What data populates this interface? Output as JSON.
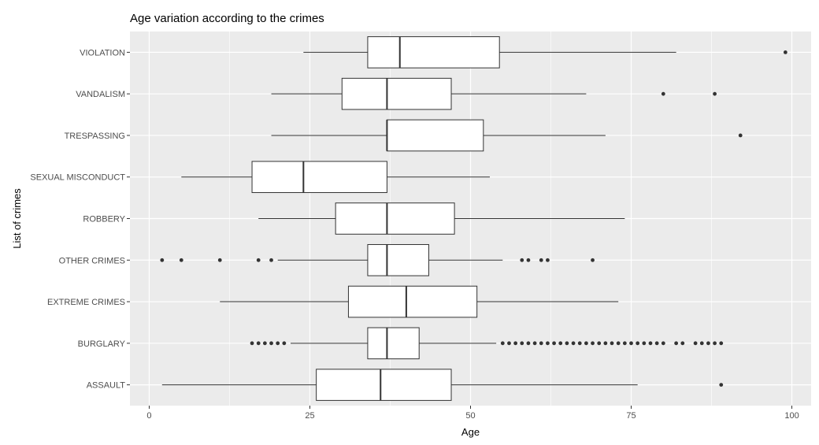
{
  "colors": {
    "panel_bg": "#ebebeb",
    "grid_major": "#ffffff",
    "box_fill": "#ffffff",
    "stroke": "#333333",
    "outlier": "#333333",
    "tick_text": "#4d4d4d"
  },
  "chart_data": {
    "type": "boxplot",
    "orientation": "horizontal",
    "title": "Age variation according to the  crimes",
    "xlabel": "Age",
    "ylabel": "List of crimes",
    "xlim": [
      -3,
      103
    ],
    "xticks": [
      0,
      25,
      50,
      75,
      100
    ],
    "grid": true,
    "categories": [
      "ASSAULT",
      "BURGLARY",
      "EXTREME CRIMES",
      "OTHER CRIMES",
      "ROBBERY",
      "SEXUAL MISCONDUCT",
      "TRESPASSING",
      "VANDALISM",
      "VIOLATION"
    ],
    "boxes": [
      {
        "category": "ASSAULT",
        "whisker_low": 2,
        "q1": 26,
        "median": 36,
        "q3": 47,
        "whisker_high": 76,
        "outliers": [
          89
        ]
      },
      {
        "category": "BURGLARY",
        "whisker_low": 22,
        "q1": 34,
        "median": 37,
        "q3": 42,
        "whisker_high": 54,
        "outliers": [
          16,
          17,
          18,
          19,
          20,
          21,
          55,
          56,
          57,
          58,
          59,
          60,
          61,
          62,
          63,
          64,
          65,
          66,
          67,
          68,
          69,
          70,
          71,
          72,
          73,
          74,
          75,
          76,
          77,
          78,
          79,
          80,
          82,
          83,
          85,
          86,
          87,
          88,
          89
        ]
      },
      {
        "category": "EXTREME CRIMES",
        "whisker_low": 11,
        "q1": 31,
        "median": 40,
        "q3": 51,
        "whisker_high": 73,
        "outliers": []
      },
      {
        "category": "OTHER CRIMES",
        "whisker_low": 20,
        "q1": 34,
        "median": 37,
        "q3": 43.5,
        "whisker_high": 55,
        "outliers": [
          2,
          5,
          11,
          17,
          19,
          58,
          59,
          61,
          62,
          69
        ]
      },
      {
        "category": "ROBBERY",
        "whisker_low": 17,
        "q1": 29,
        "median": 37,
        "q3": 47.5,
        "whisker_high": 74,
        "outliers": []
      },
      {
        "category": "SEXUAL MISCONDUCT",
        "whisker_low": 5,
        "q1": 16,
        "median": 24,
        "q3": 37,
        "whisker_high": 53,
        "outliers": []
      },
      {
        "category": "TRESPASSING",
        "whisker_low": 19,
        "q1": 37,
        "median": 37,
        "q3": 52,
        "whisker_high": 71,
        "outliers": [
          92
        ]
      },
      {
        "category": "VANDALISM",
        "whisker_low": 19,
        "q1": 30,
        "median": 37,
        "q3": 47,
        "whisker_high": 68,
        "outliers": [
          80,
          88
        ]
      },
      {
        "category": "VIOLATION",
        "whisker_low": 24,
        "q1": 34,
        "median": 39,
        "q3": 54.5,
        "whisker_high": 82,
        "outliers": [
          99
        ]
      }
    ]
  }
}
